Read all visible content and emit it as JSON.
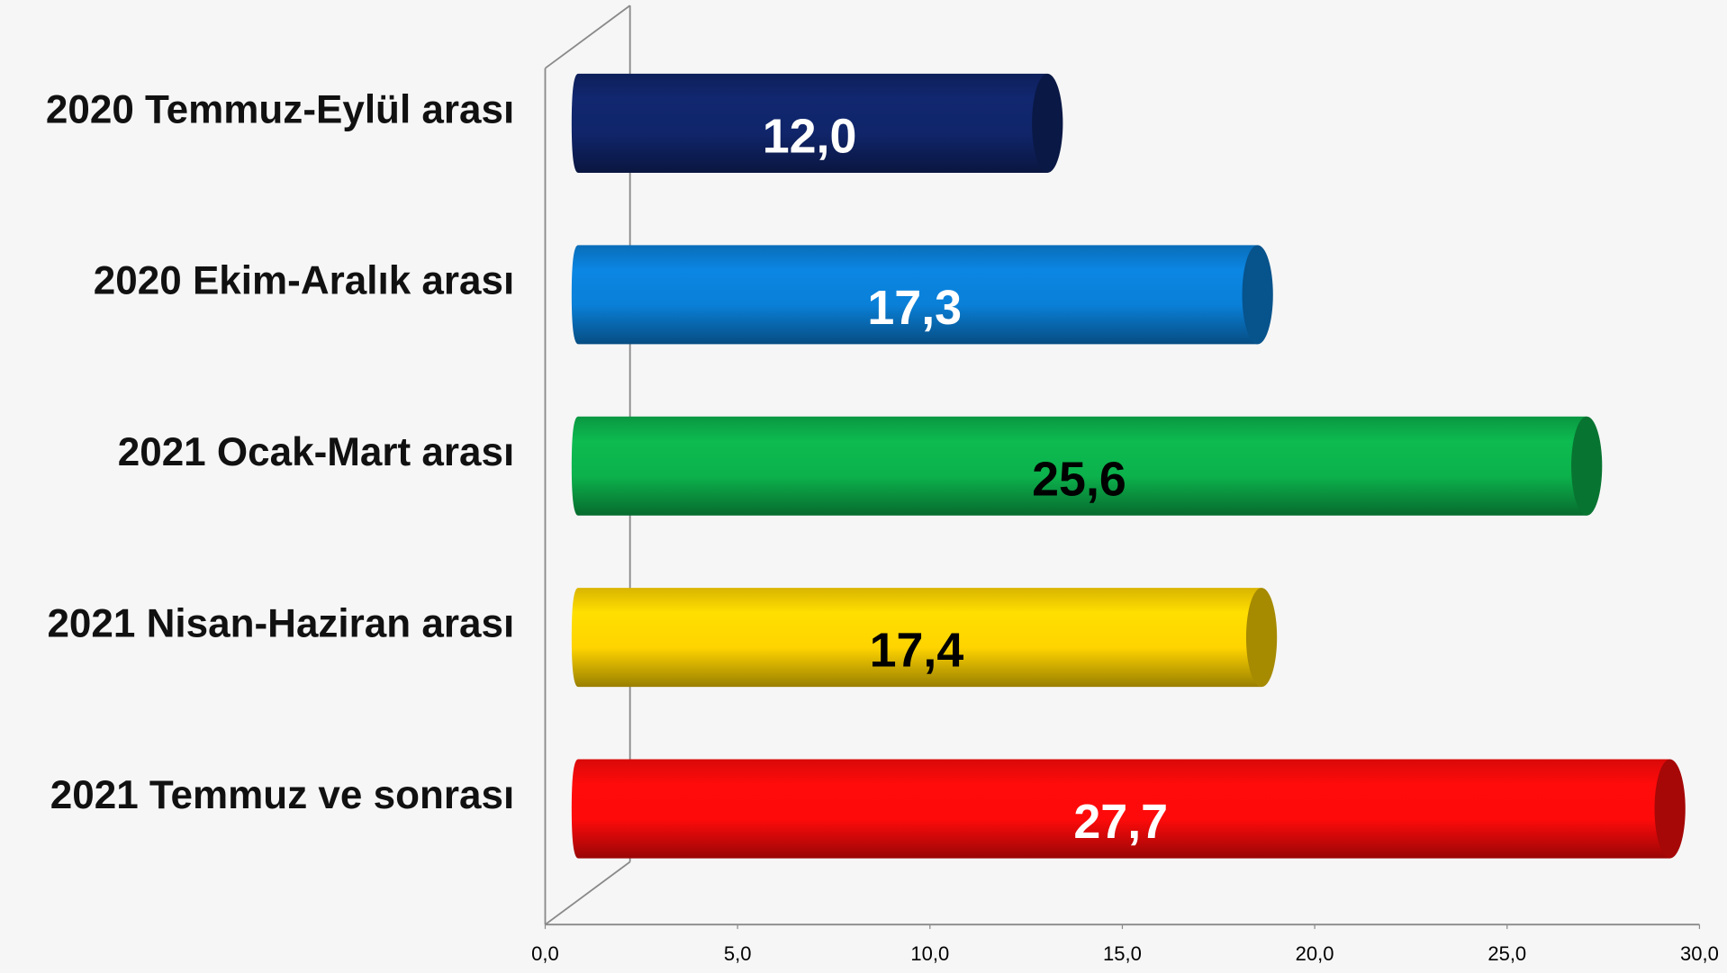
{
  "chart_data": {
    "type": "bar",
    "orientation": "horizontal",
    "categories": [
      "2020 Temmuz-Eylül arası",
      "2020 Ekim-Aralık arası",
      "2021 Ocak-Mart arası",
      "2021 Nisan-Haziran arası",
      "2021 Temmuz ve sonrası"
    ],
    "values": [
      12.0,
      17.3,
      25.6,
      17.4,
      27.7
    ],
    "value_labels": [
      "12,0",
      "17,3",
      "25,6",
      "17,4",
      "27,7"
    ],
    "colors": [
      "#10256a",
      "#0a80d8",
      "#0cb24c",
      "#ffd400",
      "#ff0a0a"
    ],
    "value_label_colors": [
      "#ffffff",
      "#ffffff",
      "#000000",
      "#000000",
      "#ffffff"
    ],
    "xlim": [
      0,
      30
    ],
    "xticks": [
      {
        "value": 0,
        "label": "0,0"
      },
      {
        "value": 5,
        "label": "5,0"
      },
      {
        "value": 10,
        "label": "10,0"
      },
      {
        "value": 15,
        "label": "15,0"
      },
      {
        "value": 20,
        "label": "20,0"
      },
      {
        "value": 25,
        "label": "25,0"
      },
      {
        "value": 30,
        "label": "30,0"
      }
    ]
  }
}
